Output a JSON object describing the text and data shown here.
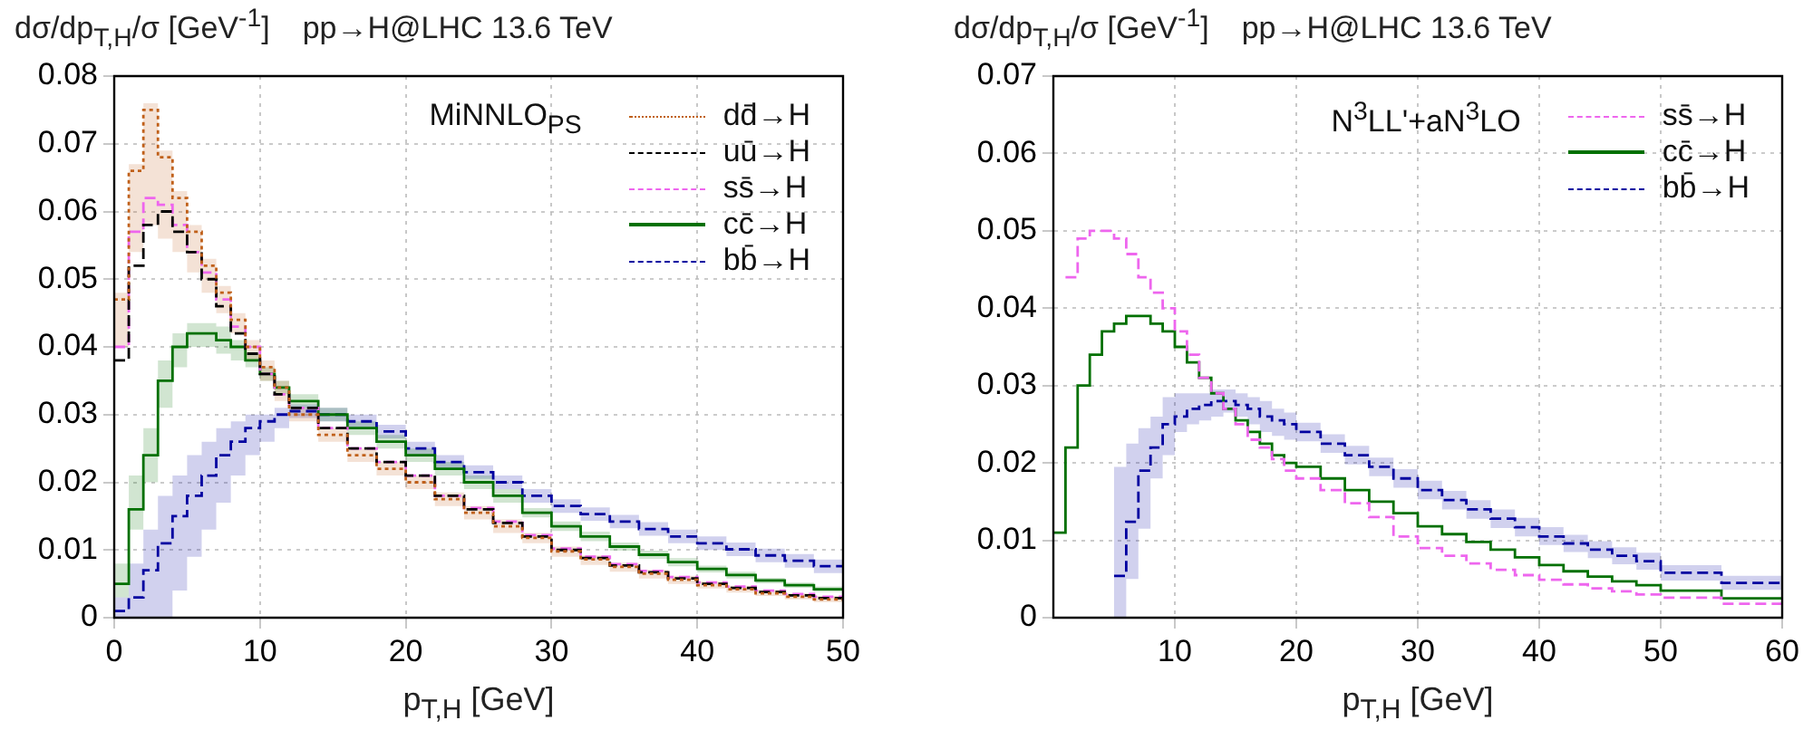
{
  "chart_data": [
    {
      "type": "step",
      "title": "pp→H@LHC 13.6 TeV",
      "ylabel": "dσ/dp$_{T,H}$/σ [GeV$^{-1}$]",
      "xlabel": "p$_{T,H}$ [GeV]",
      "legend_title": "MiNNLO$_{PS}$",
      "legend": "top right",
      "grid": true,
      "xlim": [
        0,
        50
      ],
      "xticks": [
        0,
        10,
        20,
        30,
        40,
        50
      ],
      "ylim": [
        0,
        0.08
      ],
      "yticks": [
        0,
        0.01,
        0.02,
        0.03,
        0.04,
        0.05,
        0.06,
        0.07,
        0.08
      ],
      "x": [
        0,
        1,
        2,
        3,
        4,
        5,
        6,
        7,
        8,
        9,
        10,
        11,
        12,
        14,
        16,
        18,
        20,
        22,
        24,
        26,
        28,
        30,
        32,
        34,
        36,
        38,
        40,
        42,
        44,
        46,
        48,
        50
      ],
      "series": [
        {
          "name": "dd̄→H",
          "color": "#c0601a",
          "line_style": "dotted",
          "values": [
            0.047,
            0.066,
            0.075,
            0.068,
            0.062,
            0.057,
            0.052,
            0.048,
            0.044,
            0.04,
            0.037,
            0.034,
            0.03,
            0.027,
            0.024,
            0.022,
            0.02,
            0.0175,
            0.0155,
            0.0135,
            0.0118,
            0.0098,
            0.0086,
            0.0075,
            0.0065,
            0.0056,
            0.0048,
            0.0042,
            0.0036,
            0.0031,
            0.0027,
            0.0027
          ],
          "lower": [
            0.04,
            0.054,
            0.058,
            0.056,
            0.054,
            0.051,
            0.048,
            0.045,
            0.042,
            0.038,
            0.035,
            0.032,
            0.029,
            0.026,
            0.023,
            0.021,
            0.019,
            0.0165,
            0.0145,
            0.0125,
            0.011,
            0.009,
            0.0078,
            0.0068,
            0.0058,
            0.005,
            0.0043,
            0.0037,
            0.0032,
            0.0027,
            0.0023,
            0.0023
          ],
          "upper": [
            0.048,
            0.067,
            0.076,
            0.069,
            0.063,
            0.058,
            0.053,
            0.049,
            0.045,
            0.041,
            0.038,
            0.035,
            0.031,
            0.028,
            0.025,
            0.023,
            0.021,
            0.0185,
            0.0165,
            0.0145,
            0.0125,
            0.0105,
            0.0092,
            0.0081,
            0.0071,
            0.0062,
            0.0054,
            0.0047,
            0.0041,
            0.0036,
            0.0032,
            0.0032
          ]
        },
        {
          "name": "uū→H",
          "color": "#000000",
          "line_style": "dashed",
          "values": [
            0.038,
            0.052,
            0.058,
            0.06,
            0.057,
            0.054,
            0.05,
            0.046,
            0.042,
            0.039,
            0.036,
            0.033,
            0.031,
            0.028,
            0.025,
            0.023,
            0.021,
            0.018,
            0.016,
            0.014,
            0.012,
            0.01,
            0.0088,
            0.0077,
            0.0067,
            0.0058,
            0.005,
            0.0044,
            0.0038,
            0.0033,
            0.0029,
            0.0029
          ]
        },
        {
          "name": "ss̄→H",
          "color": "#ee66ee",
          "line_style": "dashed",
          "values": [
            0.04,
            0.057,
            0.062,
            0.061,
            0.058,
            0.054,
            0.051,
            0.047,
            0.043,
            0.04,
            0.036,
            0.033,
            0.031,
            0.028,
            0.025,
            0.023,
            0.021,
            0.018,
            0.0162,
            0.0142,
            0.0122,
            0.0102,
            0.009,
            0.0079,
            0.0069,
            0.006,
            0.0052,
            0.0046,
            0.004,
            0.0035,
            0.0031,
            0.0031
          ]
        },
        {
          "name": "cc̄→H",
          "color": "#007000",
          "line_style": "solid",
          "values": [
            0.005,
            0.016,
            0.024,
            0.035,
            0.04,
            0.042,
            0.042,
            0.041,
            0.04,
            0.038,
            0.036,
            0.034,
            0.032,
            0.03,
            0.028,
            0.026,
            0.024,
            0.022,
            0.02,
            0.018,
            0.0155,
            0.0135,
            0.012,
            0.0105,
            0.0093,
            0.0082,
            0.0072,
            0.0063,
            0.0055,
            0.0048,
            0.0042,
            0.0042
          ],
          "lower": [
            0.003,
            0.013,
            0.02,
            0.031,
            0.037,
            0.04,
            0.04,
            0.039,
            0.038,
            0.037,
            0.035,
            0.033,
            0.031,
            0.029,
            0.027,
            0.025,
            0.023,
            0.021,
            0.019,
            0.017,
            0.0148,
            0.0128,
            0.0113,
            0.0099,
            0.0087,
            0.0076,
            0.0067,
            0.0058,
            0.0051,
            0.0044,
            0.0038,
            0.0038
          ],
          "upper": [
            0.008,
            0.021,
            0.028,
            0.038,
            0.042,
            0.0435,
            0.0435,
            0.043,
            0.041,
            0.039,
            0.037,
            0.035,
            0.033,
            0.031,
            0.029,
            0.027,
            0.025,
            0.023,
            0.021,
            0.019,
            0.0162,
            0.0142,
            0.0127,
            0.0111,
            0.0099,
            0.0088,
            0.0077,
            0.0068,
            0.0059,
            0.0052,
            0.0046,
            0.0046
          ]
        },
        {
          "name": "bb̄→H",
          "color": "#0000a0",
          "line_style": "dashed",
          "values": [
            0.001,
            0.003,
            0.007,
            0.011,
            0.015,
            0.018,
            0.021,
            0.024,
            0.026,
            0.028,
            0.029,
            0.03,
            0.0305,
            0.03,
            0.029,
            0.0275,
            0.025,
            0.023,
            0.0215,
            0.02,
            0.018,
            0.0165,
            0.0153,
            0.0142,
            0.0131,
            0.012,
            0.011,
            0.0101,
            0.0092,
            0.0084,
            0.0076,
            0.0076
          ],
          "lower": [
            0,
            0,
            0,
            0,
            0.004,
            0.009,
            0.013,
            0.017,
            0.021,
            0.024,
            0.026,
            0.028,
            0.0295,
            0.029,
            0.028,
            0.0265,
            0.024,
            0.022,
            0.0205,
            0.019,
            0.017,
            0.0155,
            0.0143,
            0.0132,
            0.0121,
            0.011,
            0.01,
            0.0091,
            0.0082,
            0.0074,
            0.0066,
            0.0066
          ],
          "upper": [
            0.003,
            0.008,
            0.013,
            0.018,
            0.021,
            0.024,
            0.026,
            0.028,
            0.029,
            0.03,
            0.03,
            0.031,
            0.0315,
            0.031,
            0.03,
            0.0285,
            0.026,
            0.024,
            0.0225,
            0.021,
            0.019,
            0.0175,
            0.0163,
            0.0152,
            0.0141,
            0.013,
            0.012,
            0.0111,
            0.0102,
            0.0094,
            0.0086,
            0.0086
          ]
        }
      ]
    },
    {
      "type": "step",
      "title": "pp→H@LHC 13.6 TeV",
      "ylabel": "dσ/dp$_{T,H}$/σ [GeV$^{-1}$]",
      "xlabel": "p$_{T,H}$ [GeV]",
      "legend_title": "N$^{3}$LL'+aN$^{3}$LO",
      "legend": "top right",
      "grid": true,
      "xlim": [
        0,
        60
      ],
      "xticks": [
        10,
        20,
        30,
        40,
        50,
        60
      ],
      "ylim": [
        0,
        0.07
      ],
      "yticks": [
        0,
        0.01,
        0.02,
        0.03,
        0.04,
        0.05,
        0.06,
        0.07
      ],
      "x": [
        0,
        1,
        2,
        3,
        4,
        5,
        6,
        7,
        8,
        9,
        10,
        11,
        12,
        13,
        14,
        15,
        16,
        17,
        18,
        19,
        20,
        22,
        24,
        26,
        28,
        30,
        32,
        34,
        36,
        38,
        40,
        42,
        44,
        46,
        48,
        50,
        55,
        60
      ],
      "series": [
        {
          "name": "ss̄→H",
          "color": "#ee66ee",
          "line_style": "dashed",
          "values": [
            null,
            0.044,
            0.049,
            0.05,
            0.05,
            0.049,
            0.047,
            0.044,
            0.042,
            0.04,
            0.037,
            0.034,
            0.031,
            0.029,
            0.027,
            0.025,
            0.023,
            0.022,
            0.0205,
            0.019,
            0.018,
            0.0165,
            0.0148,
            0.013,
            0.0105,
            0.009,
            0.008,
            0.007,
            0.0062,
            0.0055,
            0.0049,
            0.0043,
            0.0038,
            0.0034,
            0.003,
            0.0026,
            0.0018,
            0.0018
          ]
        },
        {
          "name": "cc̄→H",
          "color": "#007000",
          "line_style": "solid",
          "values": [
            0.011,
            0.022,
            0.03,
            0.034,
            0.037,
            0.038,
            0.039,
            0.039,
            0.038,
            0.037,
            0.035,
            0.033,
            0.031,
            0.029,
            0.027,
            0.0255,
            0.024,
            0.0225,
            0.021,
            0.02,
            0.0195,
            0.018,
            0.0165,
            0.015,
            0.0135,
            0.0118,
            0.0108,
            0.0098,
            0.0088,
            0.0078,
            0.0068,
            0.006,
            0.0053,
            0.0047,
            0.0042,
            0.0035,
            0.0025,
            0.0025
          ]
        },
        {
          "name": "bb̄→H",
          "color": "#0000a0",
          "line_style": "dashed",
          "values": [
            null,
            null,
            null,
            null,
            null,
            0.0054,
            0.0124,
            0.019,
            0.022,
            0.025,
            0.026,
            0.027,
            0.0275,
            0.028,
            0.028,
            0.0275,
            0.027,
            0.026,
            0.0255,
            0.025,
            0.024,
            0.0225,
            0.021,
            0.0195,
            0.018,
            0.0165,
            0.0152,
            0.014,
            0.0128,
            0.0117,
            0.0105,
            0.0096,
            0.0088,
            0.008,
            0.0073,
            0.0058,
            0.0045,
            0.0045
          ],
          "lower": [
            null,
            null,
            null,
            null,
            null,
            0,
            0.005,
            0.0115,
            0.018,
            0.021,
            0.024,
            0.025,
            0.0255,
            0.026,
            0.0265,
            0.026,
            0.025,
            0.024,
            0.0235,
            0.023,
            0.0228,
            0.0213,
            0.0198,
            0.0183,
            0.0168,
            0.0153,
            0.014,
            0.0128,
            0.0116,
            0.0105,
            0.0094,
            0.0085,
            0.0077,
            0.0069,
            0.0062,
            0.0048,
            0.0036,
            0.0036
          ],
          "upper": [
            null,
            null,
            null,
            null,
            null,
            0.0195,
            0.0225,
            0.0245,
            0.026,
            0.0285,
            0.029,
            0.029,
            0.029,
            0.0295,
            0.0295,
            0.029,
            0.0285,
            0.028,
            0.027,
            0.0265,
            0.0252,
            0.0237,
            0.0222,
            0.0207,
            0.0192,
            0.0177,
            0.0164,
            0.0152,
            0.014,
            0.0129,
            0.0117,
            0.0107,
            0.0099,
            0.0091,
            0.0084,
            0.0068,
            0.0054,
            0.0054
          ]
        }
      ]
    }
  ]
}
